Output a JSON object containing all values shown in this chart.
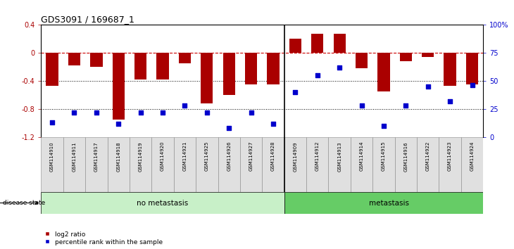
{
  "title": "GDS3091 / 169687_1",
  "samples": [
    "GSM114910",
    "GSM114911",
    "GSM114917",
    "GSM114918",
    "GSM114919",
    "GSM114920",
    "GSM114921",
    "GSM114925",
    "GSM114926",
    "GSM114927",
    "GSM114928",
    "GSM114909",
    "GSM114912",
    "GSM114913",
    "GSM114914",
    "GSM114915",
    "GSM114916",
    "GSM114922",
    "GSM114923",
    "GSM114924"
  ],
  "log2_ratio": [
    -0.47,
    -0.18,
    -0.2,
    -0.95,
    -0.38,
    -0.38,
    -0.15,
    -0.72,
    -0.6,
    -0.45,
    -0.45,
    0.2,
    0.27,
    0.27,
    -0.22,
    -0.55,
    -0.12,
    -0.06,
    -0.47,
    -0.45
  ],
  "percentile": [
    13,
    22,
    22,
    12,
    22,
    22,
    28,
    22,
    8,
    22,
    12,
    40,
    55,
    62,
    28,
    10,
    28,
    45,
    32,
    46
  ],
  "group_labels": [
    "no metastasis",
    "metastasis"
  ],
  "group_colors": [
    "#c8f0c8",
    "#66cc66"
  ],
  "group_split": 11,
  "bar_color": "#aa0000",
  "dot_color": "#0000cc",
  "ylim_left": [
    -1.2,
    0.4
  ],
  "ylim_right": [
    0,
    100
  ],
  "hline_dashed_color": "#cc0000",
  "hlines_dotted": [
    -0.4,
    -0.8
  ],
  "right_ticks": [
    0,
    25,
    50,
    75,
    100
  ],
  "right_tick_labels": [
    "0",
    "25",
    "50",
    "75",
    "100%"
  ],
  "left_ticks": [
    -1.2,
    -0.8,
    -0.4,
    0.0,
    0.4
  ],
  "left_tick_labels": [
    "-1.2",
    "-0.8",
    "-0.4",
    "0",
    "0.4"
  ]
}
